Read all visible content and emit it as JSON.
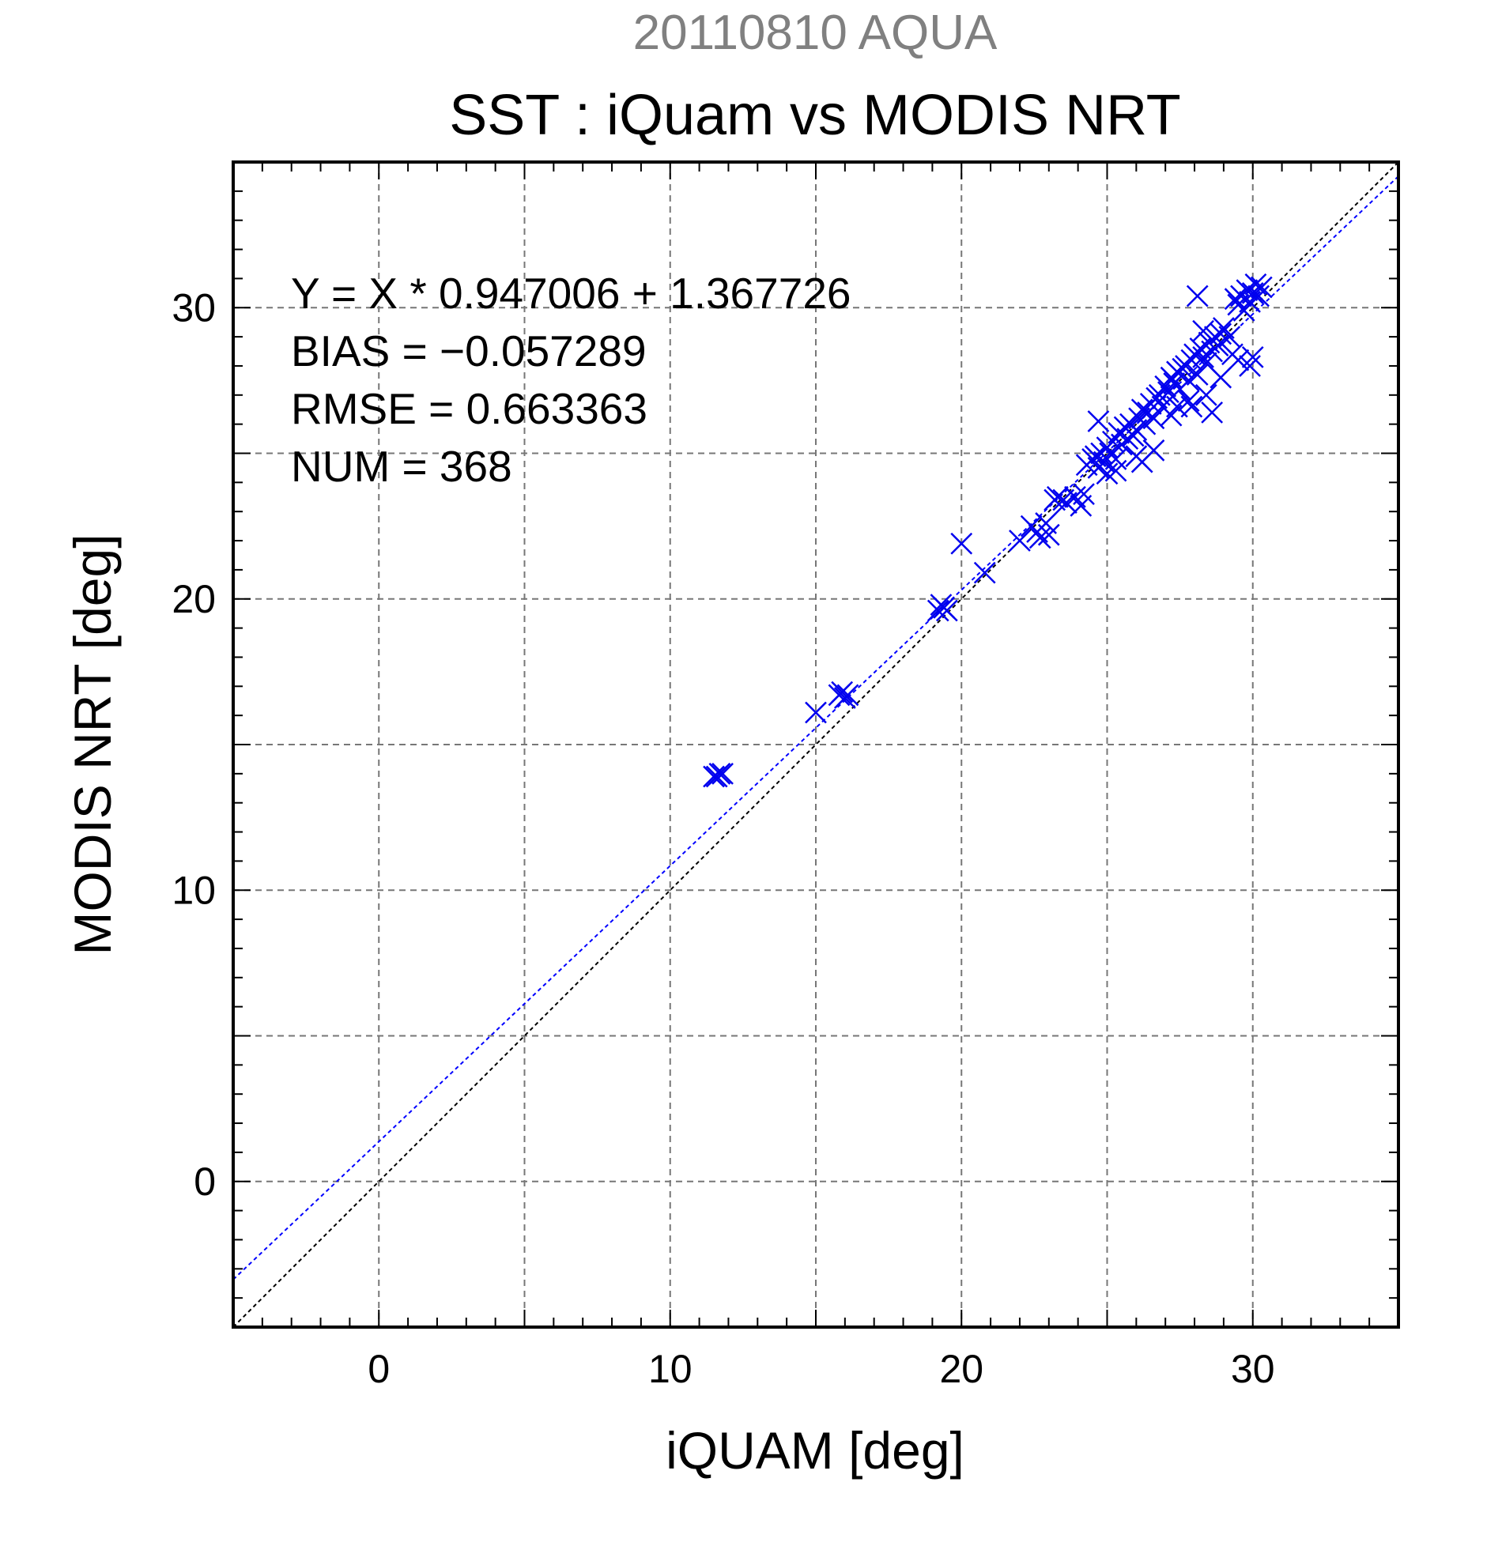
{
  "chart_data": {
    "type": "scatter",
    "super_title": "20110810 AQUA",
    "title": "SST : iQuam vs MODIS NRT",
    "xlabel": "iQUAM [deg]",
    "ylabel": "MODIS NRT [deg]",
    "xlim": [
      -5,
      35
    ],
    "ylim": [
      -5,
      35
    ],
    "xticks": [
      0,
      10,
      20,
      30
    ],
    "yticks": [
      0,
      10,
      20,
      30
    ],
    "grid": true,
    "marker": "x",
    "colors": {
      "points": "#0000ee",
      "fit_line": "#0000ff",
      "identity_line": "#000000",
      "super_title": "#808080"
    },
    "annotations": [
      "Y = X * 0.947006 + 1.367726",
      "BIAS = −0.057289",
      "RMSE = 0.663363",
      "NUM = 368"
    ],
    "fit": {
      "slope": 0.947006,
      "intercept": 1.367726
    },
    "series": [
      {
        "x": [
          11.5,
          11.7,
          11.6,
          11.8,
          15.0,
          15.8,
          16.0,
          16.1,
          15.9,
          19.2,
          19.4,
          19.5,
          19.3,
          20.0,
          20.8,
          22.0,
          22.4,
          22.6,
          22.7,
          22.9,
          23.0,
          23.2,
          23.3,
          23.5,
          23.6,
          23.9,
          24.1,
          24.3,
          24.5,
          24.6,
          24.7,
          24.8,
          24.9,
          25.0,
          25.1,
          25.2,
          25.3,
          25.4,
          25.5,
          25.6,
          25.7,
          25.8,
          25.9,
          26.0,
          26.1,
          26.2,
          26.3,
          26.4,
          26.5,
          26.6,
          26.7,
          26.8,
          26.9,
          27.0,
          27.1,
          27.2,
          27.3,
          27.4,
          27.5,
          27.6,
          27.7,
          27.8,
          27.9,
          28.0,
          28.1,
          28.2,
          28.3,
          28.4,
          28.5,
          28.6,
          28.7,
          28.8,
          28.9,
          29.0,
          29.2,
          29.4,
          29.5,
          29.6,
          29.7,
          29.8,
          29.9,
          30.0,
          30.1,
          30.2,
          30.3,
          29.5,
          28.1,
          28.3,
          27.8,
          28.6,
          29.9,
          30.0,
          24.7,
          25.0,
          26.2,
          26.6,
          27.2,
          27.9,
          28.4,
          24.2,
          25.3,
          26.0,
          27.4,
          28.9,
          29.3
        ],
        "y": [
          13.9,
          14.0,
          13.9,
          14.0,
          16.1,
          16.7,
          16.6,
          16.7,
          16.8,
          19.6,
          19.7,
          19.6,
          19.8,
          21.9,
          20.9,
          22.0,
          22.5,
          22.3,
          22.1,
          22.6,
          22.2,
          23.4,
          23.5,
          23.4,
          23.3,
          23.5,
          23.2,
          24.6,
          24.8,
          24.9,
          24.5,
          25.0,
          24.7,
          25.2,
          25.0,
          25.4,
          24.8,
          25.7,
          25.3,
          25.9,
          25.5,
          26.0,
          25.6,
          25.8,
          26.2,
          26.5,
          26.0,
          26.4,
          26.7,
          26.2,
          26.9,
          27.0,
          26.6,
          27.3,
          27.1,
          27.6,
          27.4,
          27.8,
          27.2,
          27.9,
          28.0,
          27.5,
          28.2,
          28.4,
          27.7,
          28.6,
          28.3,
          28.1,
          28.8,
          28.5,
          29.0,
          28.7,
          29.1,
          29.3,
          29.0,
          30.3,
          30.1,
          30.4,
          29.9,
          30.6,
          30.2,
          30.5,
          30.8,
          30.4,
          30.7,
          28.2,
          30.4,
          29.2,
          26.8,
          26.4,
          28.0,
          28.3,
          26.1,
          24.3,
          24.7,
          25.1,
          26.3,
          26.6,
          27.0,
          23.6,
          24.4,
          24.9,
          26.6,
          27.6,
          28.4
        ]
      }
    ]
  }
}
